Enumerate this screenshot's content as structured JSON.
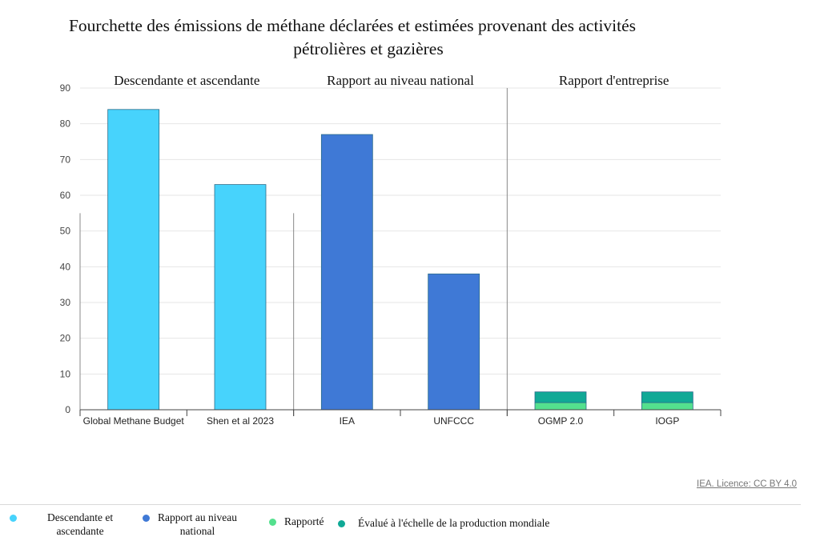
{
  "title": {
    "line1": "Fourchette des émissions de méthane déclarées et estimées provenant des activités",
    "line2": "pétrolières et gazières"
  },
  "credit": "IEA. Licence: CC BY 4.0",
  "colors": {
    "descendante": "#47d3fc",
    "national": "#3f79d6",
    "rapporte": "#54e08e",
    "evalue": "#10a996"
  },
  "chart_data": {
    "type": "bar",
    "ylim": [
      0,
      90
    ],
    "yticks": [
      0,
      10,
      20,
      30,
      40,
      50,
      60,
      70,
      80,
      90
    ],
    "grid": true,
    "panels": [
      {
        "label": "Descendante et ascendante",
        "bars": [
          {
            "category": "Global Methane Budget",
            "segments": [
              {
                "series": "Descendante et ascendante",
                "value": 84
              }
            ]
          },
          {
            "category": "Shen et al 2023",
            "segments": [
              {
                "series": "Descendante et ascendante",
                "value": 63
              }
            ]
          }
        ]
      },
      {
        "label": "Rapport au  niveau national",
        "bars": [
          {
            "category": "IEA",
            "segments": [
              {
                "series": "Rapport au  niveau national",
                "value": 77
              }
            ]
          },
          {
            "category": "UNFCCC",
            "segments": [
              {
                "series": "Rapport au  niveau national",
                "value": 38
              }
            ]
          }
        ]
      },
      {
        "label": "Rapport d'entreprise",
        "bars": [
          {
            "category": "OGMP 2.0",
            "segments": [
              {
                "series": "Rapporté",
                "value": 2
              },
              {
                "series": "Évalué à l'échelle de la production mondiale",
                "value": 3
              }
            ]
          },
          {
            "category": "IOGP",
            "segments": [
              {
                "series": "Rapporté",
                "value": 2
              },
              {
                "series": "Évalué à l'échelle de la production mondiale",
                "value": 3
              }
            ]
          }
        ]
      }
    ],
    "legend": [
      {
        "label": "Descendante et ascendante",
        "color": "#47d3fc"
      },
      {
        "label": "Rapport au  niveau national",
        "color": "#3f79d6"
      },
      {
        "label": "Rapporté",
        "color": "#54e08e"
      },
      {
        "label": "Évalué à l'échelle de la production mondiale",
        "color": "#10a996"
      }
    ],
    "legend_position": "bottom"
  },
  "legend_display": {
    "item1_line1": "Descendante et",
    "item1_line2": "ascendante",
    "item2_line1": "Rapport au  niveau",
    "item2_line2": "national",
    "item3": "Rapporté",
    "item4": "Évalué à l'échelle de la production mondiale"
  }
}
